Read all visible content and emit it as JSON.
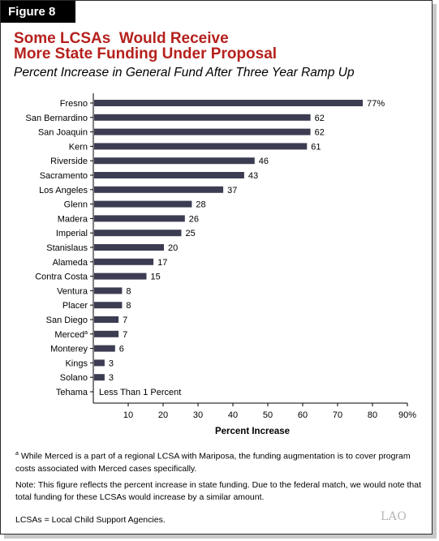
{
  "figure_label": "Figure 8",
  "title": "Some LCSAs  Would Receive\nMore State Funding Under Proposal",
  "subtitle": "Percent Increase in General Fund After Three Year Ramp Up",
  "footnote_marker": "a",
  "footnote_text": "While Merced is a part of a regional LCSA with Mariposa, the funding augmentation is to cover program costs associated with Merced cases specifically.",
  "note": "Note: This figure reflects the percent increase in state funding. Due to the federal match, we would note that total funding for these LCSAs would increase by a similar amount.",
  "abbreviation": "LCSAs = Local Child Support Agencies.",
  "logo_text": "LAO",
  "chart_data": {
    "type": "bar",
    "orientation": "horizontal",
    "categories": [
      "Fresno",
      "San Bernardino",
      "San Joaquin",
      "Kern",
      "Riverside",
      "Sacramento",
      "Los Angeles",
      "Glenn",
      "Madera",
      "Imperial",
      "Stanislaus",
      "Alameda",
      "Contra Costa",
      "Ventura",
      "Placer",
      "San Diego",
      "Merced",
      "Monterey",
      "Kings",
      "Solano",
      "Tehama"
    ],
    "category_superscripts": [
      "",
      "",
      "",
      "",
      "",
      "",
      "",
      "",
      "",
      "",
      "",
      "",
      "",
      "",
      "",
      "",
      "a",
      "",
      "",
      "",
      ""
    ],
    "values": [
      77,
      62,
      62,
      61,
      46,
      43,
      37,
      28,
      26,
      25,
      20,
      17,
      15,
      8,
      8,
      7,
      7,
      6,
      3,
      3,
      0
    ],
    "data_labels": [
      "77%",
      "62",
      "62",
      "61",
      "46",
      "43",
      "37",
      "28",
      "26",
      "25",
      "20",
      "17",
      "15",
      "8",
      "8",
      "7",
      "7",
      "6",
      "3",
      "3",
      "Less Than 1 Percent"
    ],
    "xlabel": "Percent Increase",
    "ylabel": "",
    "xlim": [
      0,
      90
    ],
    "x_ticks": [
      10,
      20,
      30,
      40,
      50,
      60,
      70,
      80,
      90
    ],
    "x_tick_labels": [
      "10",
      "20",
      "30",
      "40",
      "50",
      "60",
      "70",
      "80",
      "90%"
    ],
    "bar_color": "#3c3d52",
    "grid": false
  }
}
